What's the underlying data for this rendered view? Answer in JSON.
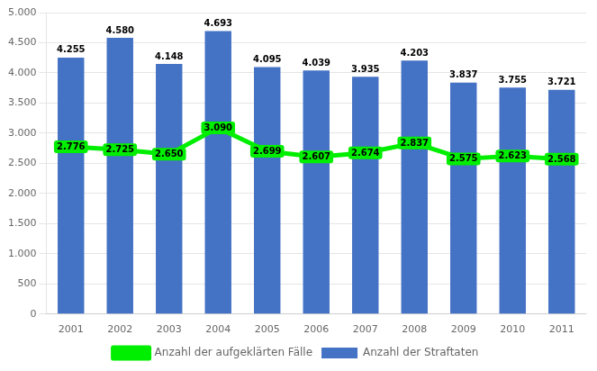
{
  "chart_data": {
    "type": "bar",
    "categories": [
      "2001",
      "2002",
      "2003",
      "2004",
      "2005",
      "2006",
      "2007",
      "2008",
      "2009",
      "2010",
      "2011"
    ],
    "series": [
      {
        "name": "Anzahl der Straftaten",
        "type": "bar",
        "color": "#4472C4",
        "values": [
          4255,
          4580,
          4148,
          4693,
          4095,
          4039,
          3935,
          4203,
          3837,
          3755,
          3721
        ],
        "value_labels": [
          "4.255",
          "4.580",
          "4.148",
          "4.693",
          "4.095",
          "4.039",
          "3.935",
          "4.203",
          "3.837",
          "3.755",
          "3.721"
        ]
      },
      {
        "name": "Anzahl der aufgeklärten Fälle",
        "type": "line",
        "color": "#00EE00",
        "values": [
          2776,
          2725,
          2650,
          3090,
          2699,
          2607,
          2674,
          2837,
          2575,
          2623,
          2568
        ],
        "value_labels": [
          "2.776",
          "2.725",
          "2.650",
          "3.090",
          "2.699",
          "2.607",
          "2.674",
          "2.837",
          "2.575",
          "2.623",
          "2.568"
        ]
      }
    ],
    "ylim": [
      0,
      5000
    ],
    "yticks": [
      0,
      500,
      {
        "value": 1000,
        "label": "1.000"
      },
      {
        "value": 1500,
        "label": "1.500"
      },
      {
        "value": 2000,
        "label": "2.000"
      },
      {
        "value": 2500,
        "label": "2.500"
      },
      {
        "value": 3000,
        "label": "3.000"
      },
      {
        "value": 3500,
        "label": "3.500"
      },
      {
        "value": 4000,
        "label": "4.000"
      },
      {
        "value": 4500,
        "label": "4.500"
      },
      {
        "value": 5000,
        "label": "5.000"
      }
    ],
    "grid": true,
    "legend": "bottom",
    "data_labels": true
  }
}
